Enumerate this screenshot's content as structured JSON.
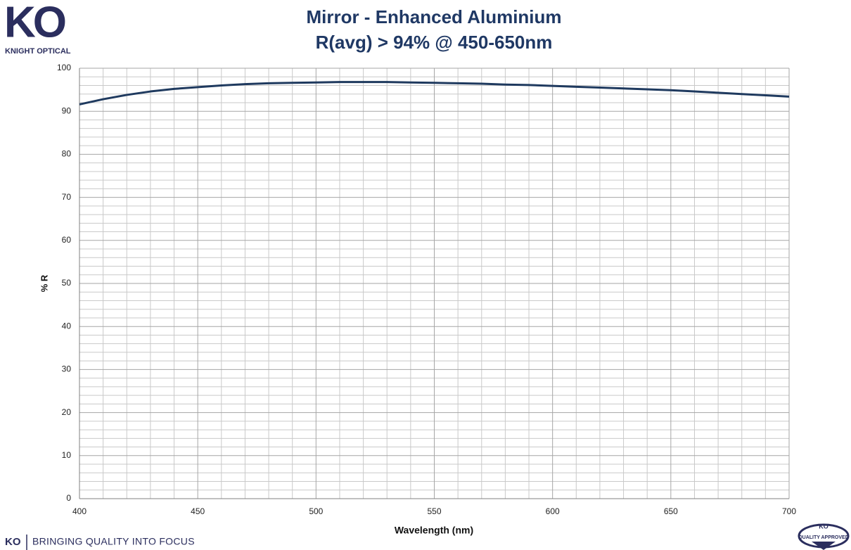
{
  "branding": {
    "logo": "KO",
    "company": "KNIGHT OPTICAL",
    "footer_logo": "KO",
    "tagline": "BRINGING QUALITY INTO FOCUS",
    "badge_logo": "KO",
    "badge_text": "QUALITY APPROVED"
  },
  "chart_data": {
    "type": "line",
    "title": "Mirror - Enhanced Aluminium",
    "subtitle": "R(avg) > 94% @ 450-650nm",
    "x_label": "Wavelength (nm)",
    "y_label": "% R",
    "x": [
      400,
      410,
      420,
      430,
      440,
      450,
      460,
      470,
      480,
      490,
      500,
      510,
      520,
      530,
      540,
      550,
      560,
      570,
      580,
      590,
      600,
      610,
      620,
      630,
      640,
      650,
      660,
      670,
      680,
      690,
      700
    ],
    "values": [
      91.6,
      92.8,
      93.8,
      94.6,
      95.2,
      95.6,
      96.0,
      96.3,
      96.5,
      96.6,
      96.7,
      96.8,
      96.8,
      96.8,
      96.7,
      96.6,
      96.5,
      96.4,
      96.2,
      96.1,
      95.9,
      95.7,
      95.5,
      95.3,
      95.1,
      94.9,
      94.6,
      94.3,
      94.0,
      93.7,
      93.4
    ],
    "color": "#1f3a5f",
    "xlim": [
      400,
      700
    ],
    "xticks": [
      400,
      450,
      500,
      550,
      600,
      650,
      700
    ],
    "ylim": [
      0,
      100
    ],
    "yticks": [
      0,
      10,
      20,
      30,
      40,
      50,
      60,
      70,
      80,
      90,
      100
    ],
    "grid": true,
    "minor_grid": true
  }
}
